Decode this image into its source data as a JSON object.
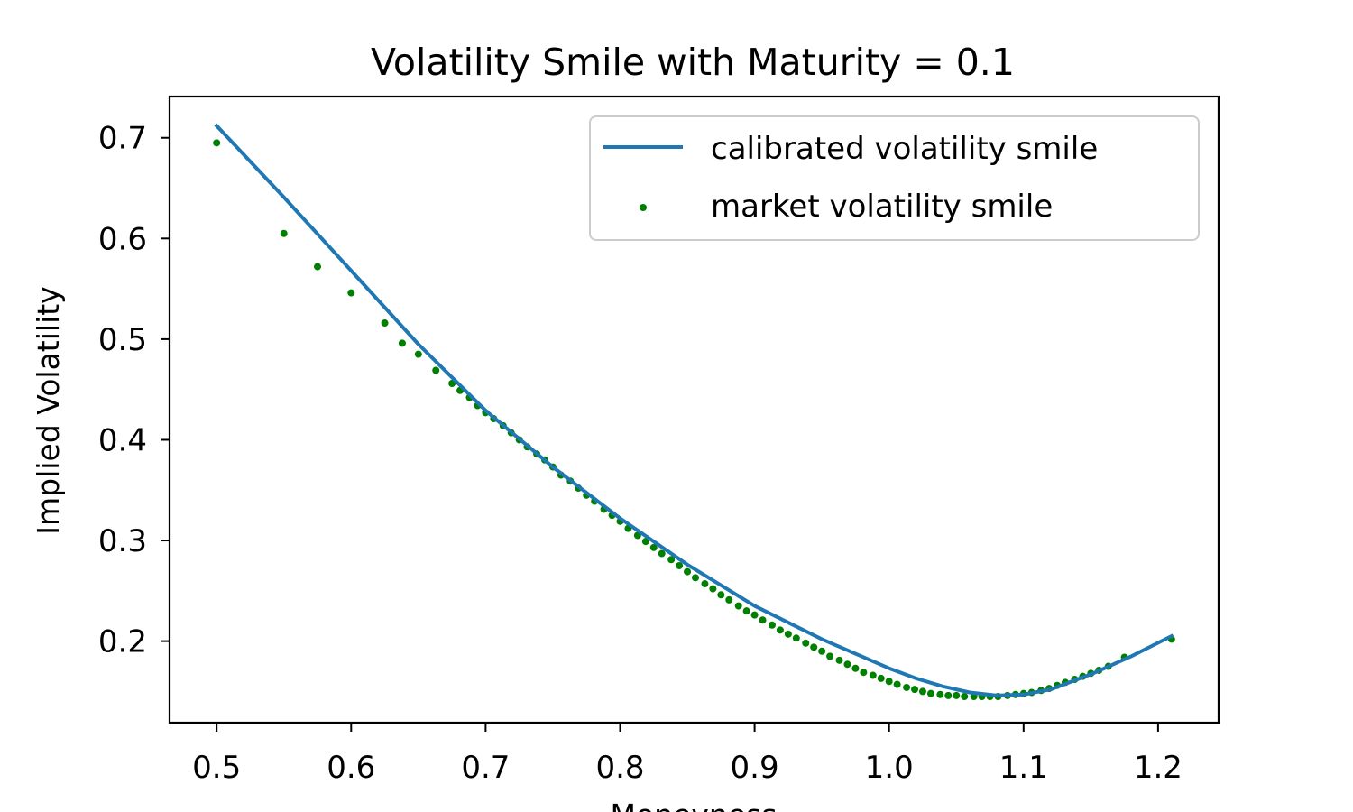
{
  "chart_data": {
    "type": "line+scatter",
    "title": "Volatility Smile with Maturity = 0.1",
    "xlabel": "Moneyness",
    "ylabel": "Implied Volatility",
    "xlim": [
      0.465,
      1.245
    ],
    "ylim": [
      0.119,
      0.741
    ],
    "x_ticks": [
      0.5,
      0.6,
      0.7,
      0.8,
      0.9,
      1.0,
      1.1,
      1.2
    ],
    "x_tick_labels": [
      "0.5",
      "0.6",
      "0.7",
      "0.8",
      "0.9",
      "1.0",
      "1.1",
      "1.2"
    ],
    "y_ticks": [
      0.2,
      0.3,
      0.4,
      0.5,
      0.6,
      0.7
    ],
    "y_tick_labels": [
      "0.2",
      "0.3",
      "0.4",
      "0.5",
      "0.6",
      "0.7"
    ],
    "legend": {
      "position": "top-right"
    },
    "colors": {
      "calibrated": "#1f77b4",
      "market": "#008000"
    },
    "series": [
      {
        "name": "calibrated volatility smile",
        "kind": "line",
        "x": [
          0.5,
          0.55,
          0.6,
          0.65,
          0.7,
          0.75,
          0.8,
          0.85,
          0.9,
          0.95,
          1.0,
          1.02,
          1.04,
          1.06,
          1.08,
          1.1,
          1.12,
          1.15,
          1.18,
          1.21
        ],
        "y": [
          0.712,
          0.641,
          0.568,
          0.495,
          0.429,
          0.373,
          0.322,
          0.276,
          0.235,
          0.202,
          0.173,
          0.163,
          0.155,
          0.149,
          0.146,
          0.147,
          0.152,
          0.167,
          0.185,
          0.205
        ]
      },
      {
        "name": "market volatility smile",
        "kind": "scatter",
        "x": [
          0.5,
          0.55,
          0.575,
          0.6,
          0.625,
          0.638,
          0.65,
          0.663,
          0.675,
          0.681,
          0.688,
          0.694,
          0.7,
          0.706,
          0.713,
          0.719,
          0.725,
          0.731,
          0.738,
          0.744,
          0.75,
          0.756,
          0.763,
          0.769,
          0.775,
          0.781,
          0.788,
          0.794,
          0.8,
          0.806,
          0.813,
          0.819,
          0.825,
          0.831,
          0.838,
          0.844,
          0.85,
          0.856,
          0.863,
          0.869,
          0.875,
          0.881,
          0.888,
          0.894,
          0.9,
          0.906,
          0.913,
          0.919,
          0.925,
          0.931,
          0.938,
          0.944,
          0.95,
          0.956,
          0.963,
          0.969,
          0.975,
          0.981,
          0.988,
          0.994,
          1.0,
          1.006,
          1.013,
          1.019,
          1.025,
          1.031,
          1.038,
          1.044,
          1.05,
          1.056,
          1.063,
          1.069,
          1.075,
          1.081,
          1.088,
          1.094,
          1.1,
          1.106,
          1.113,
          1.119,
          1.125,
          1.131,
          1.138,
          1.144,
          1.15,
          1.156,
          1.163,
          1.175,
          1.21
        ],
        "y": [
          0.695,
          0.605,
          0.572,
          0.546,
          0.516,
          0.496,
          0.485,
          0.469,
          0.456,
          0.449,
          0.442,
          0.434,
          0.427,
          0.421,
          0.414,
          0.407,
          0.4,
          0.393,
          0.386,
          0.38,
          0.373,
          0.365,
          0.359,
          0.352,
          0.345,
          0.339,
          0.331,
          0.325,
          0.319,
          0.312,
          0.305,
          0.299,
          0.293,
          0.287,
          0.281,
          0.275,
          0.269,
          0.263,
          0.257,
          0.252,
          0.246,
          0.241,
          0.235,
          0.23,
          0.226,
          0.221,
          0.216,
          0.211,
          0.207,
          0.203,
          0.198,
          0.194,
          0.19,
          0.185,
          0.181,
          0.177,
          0.173,
          0.169,
          0.166,
          0.163,
          0.16,
          0.157,
          0.154,
          0.152,
          0.15,
          0.148,
          0.147,
          0.146,
          0.146,
          0.145,
          0.145,
          0.145,
          0.145,
          0.145,
          0.146,
          0.147,
          0.148,
          0.149,
          0.151,
          0.153,
          0.156,
          0.159,
          0.162,
          0.165,
          0.168,
          0.171,
          0.175,
          0.184,
          0.202
        ]
      }
    ]
  }
}
